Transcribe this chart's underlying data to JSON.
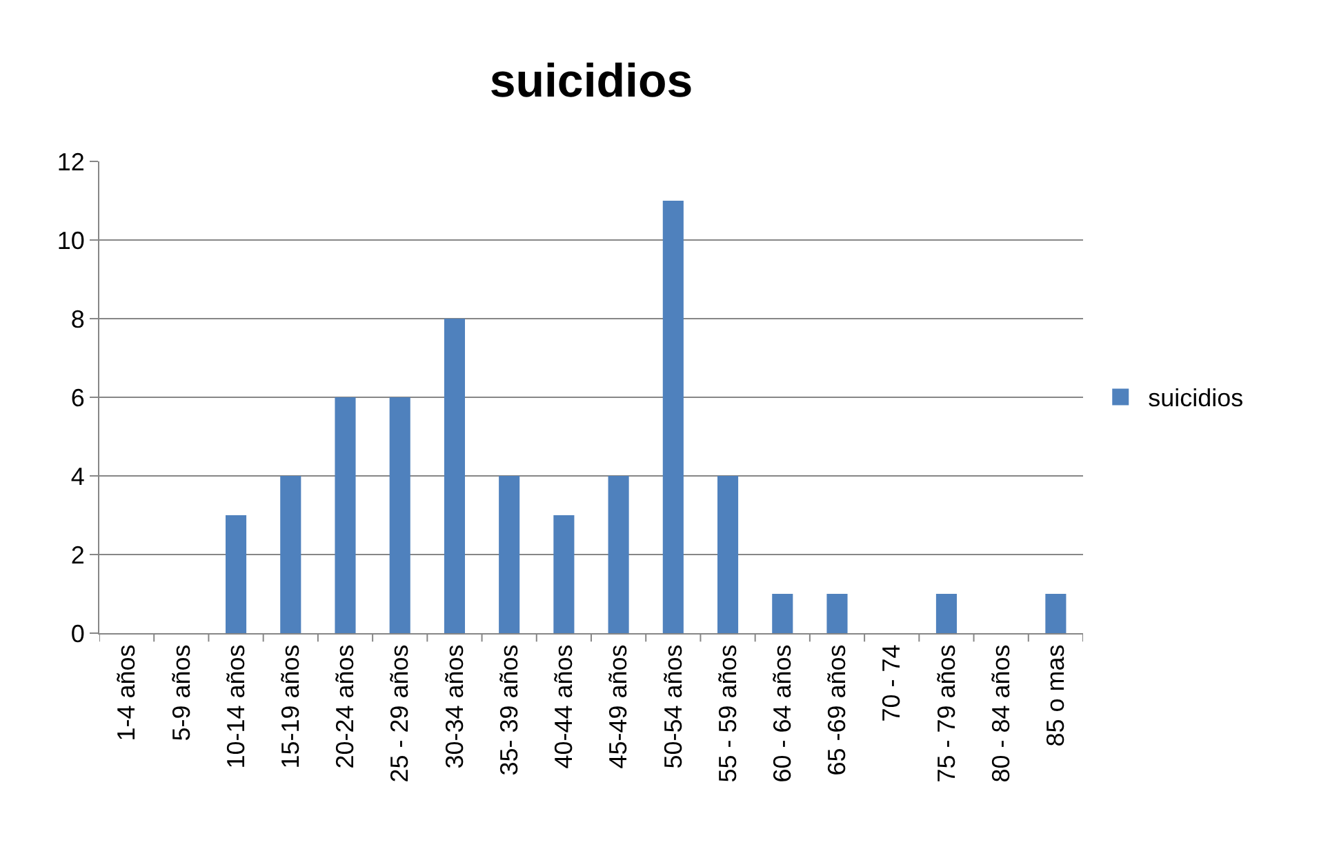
{
  "chart_data": {
    "type": "bar",
    "title": "suicidios",
    "categories": [
      "1-4 años",
      "5-9 años",
      "10-14 años",
      "15-19 años",
      "20-24 años",
      "25 - 29 años",
      "30-34 años",
      "35- 39 años",
      "40-44 años",
      "45-49 años",
      "50-54 años",
      "55 - 59 años",
      "60 - 64 años",
      "65 -69 años",
      "70 - 74",
      "75 - 79 años",
      "80 - 84 años",
      "85 o mas"
    ],
    "series": [
      {
        "name": "suicidios",
        "color": "#4f81bd",
        "values": [
          0,
          0,
          3,
          4,
          6,
          6,
          8,
          4,
          3,
          4,
          11,
          4,
          1,
          1,
          0,
          1,
          0,
          1
        ]
      }
    ],
    "ylim": [
      0,
      12
    ],
    "yticks": [
      0,
      2,
      4,
      6,
      8,
      10,
      12
    ],
    "grid": "y",
    "legend": "right"
  }
}
